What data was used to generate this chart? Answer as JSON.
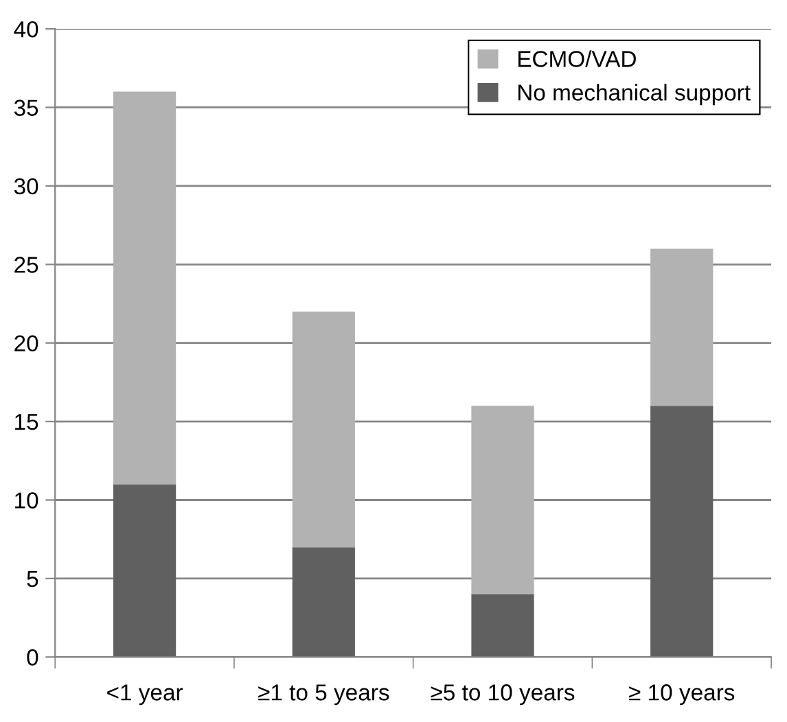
{
  "chart_data": {
    "type": "bar",
    "stacked": true,
    "categories": [
      "<1 year",
      "≥1 to 5 years",
      "≥5 to 10 years",
      "≥ 10 years"
    ],
    "series": [
      {
        "name": "No mechanical support",
        "color": "#606060",
        "values": [
          11,
          7,
          4,
          16
        ]
      },
      {
        "name": "ECMO/VAD",
        "color": "#b2b2b2",
        "values": [
          25,
          15,
          12,
          10
        ]
      }
    ],
    "ylim": [
      0,
      40
    ],
    "yticks": [
      0,
      5,
      10,
      15,
      20,
      25,
      30,
      35,
      40
    ],
    "grid": "y",
    "legend": "top right"
  }
}
